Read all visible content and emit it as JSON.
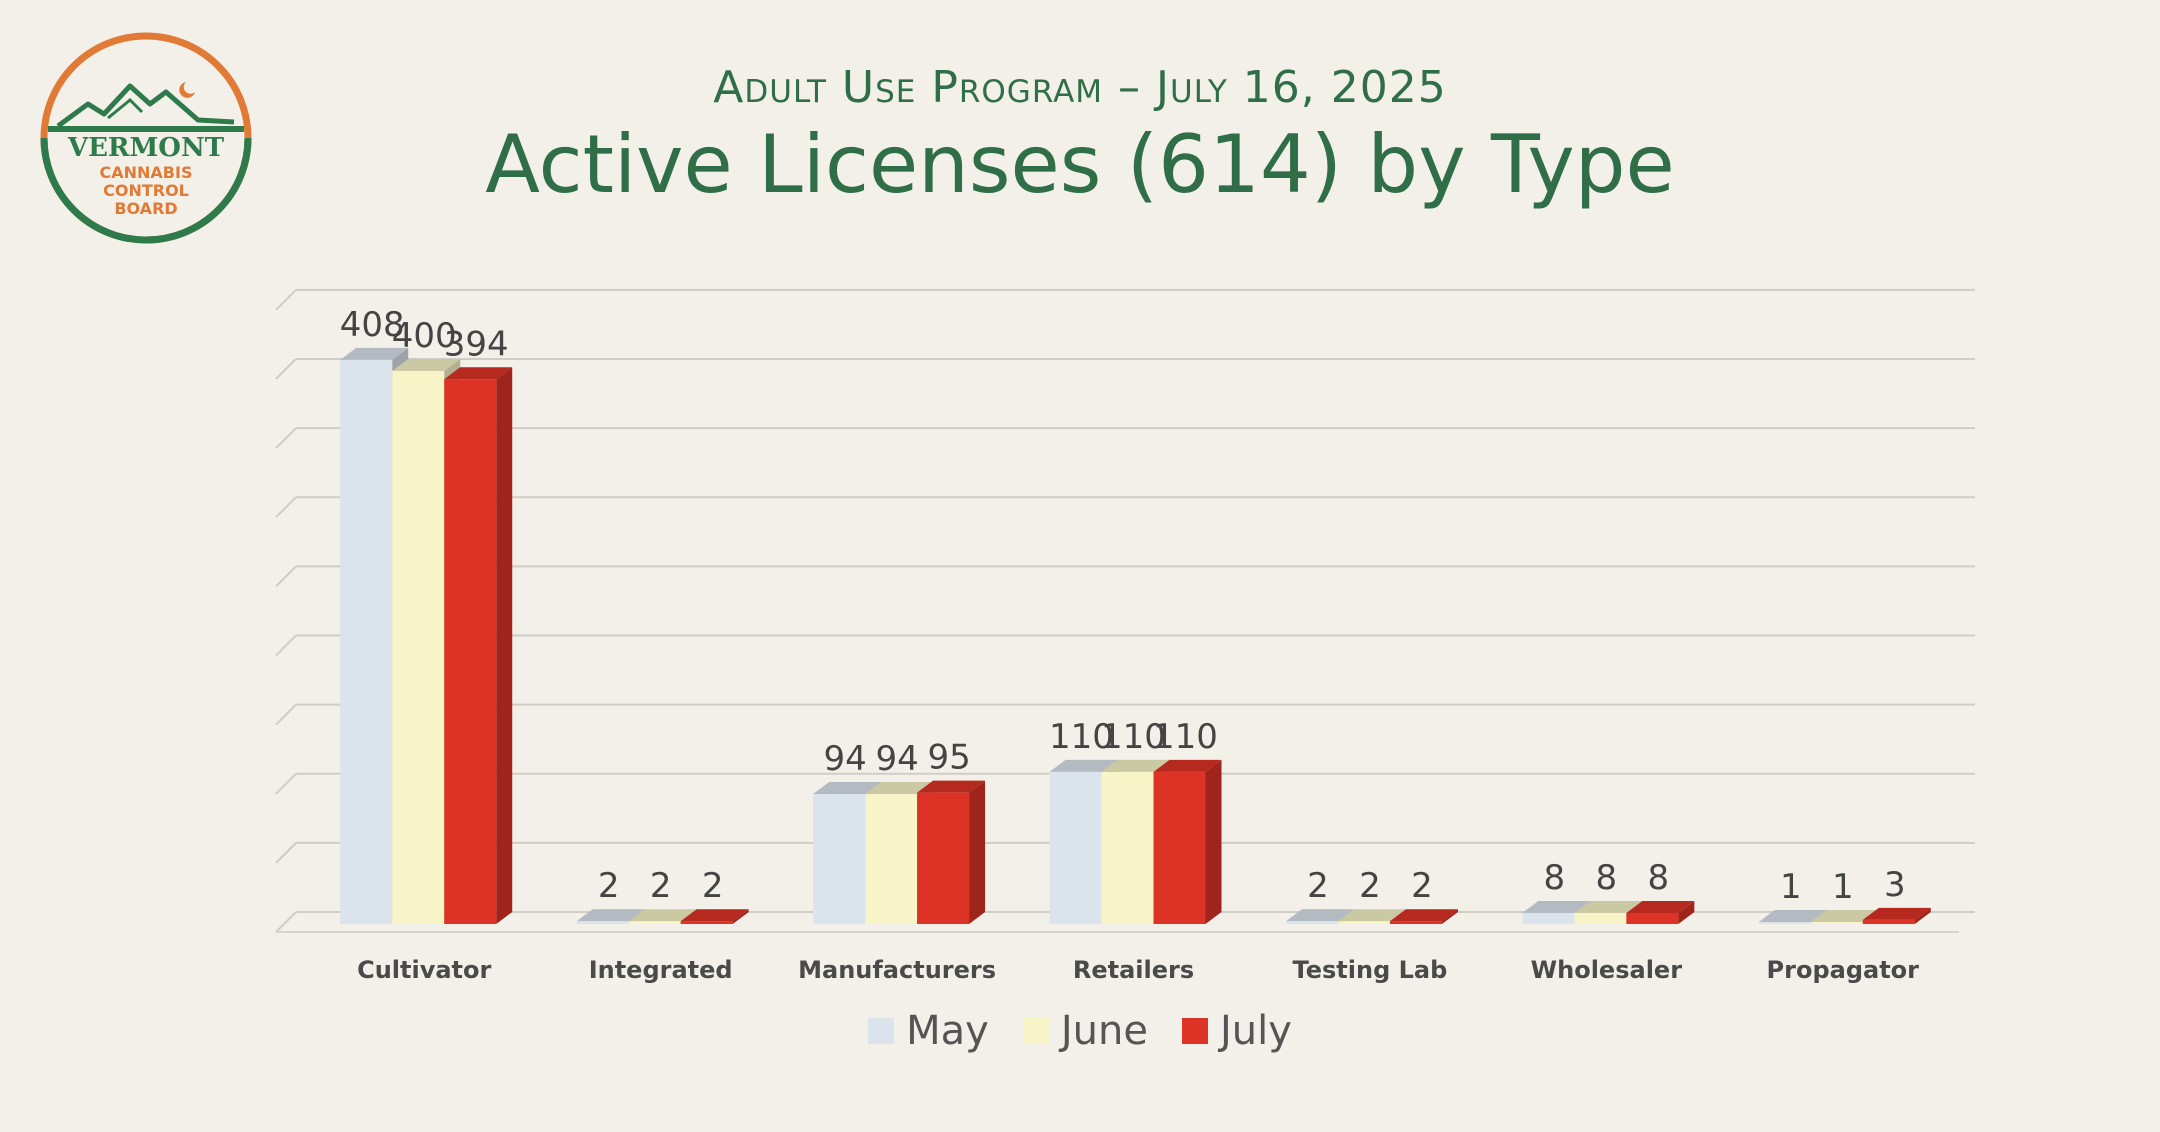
{
  "header": {
    "subtitle": "Adult Use Program – July 16, 2025",
    "title": "Active Licenses (614) by Type"
  },
  "logo": {
    "line1": "VERMONT",
    "line2": "CANNABIS",
    "line3": "CONTROL",
    "line4": "BOARD",
    "green": "#2f7a4b",
    "orange": "#e07a35"
  },
  "chart_data": {
    "type": "bar",
    "title": "Active Licenses (614) by Type",
    "xlabel": "",
    "ylabel": "",
    "ylim": [
      0,
      460
    ],
    "gridlines": true,
    "legend_position": "bottom",
    "categories": [
      "Cultivator",
      "Integrated",
      "Manufacturers",
      "Retailers",
      "Testing Lab",
      "Wholesaler",
      "Propagator"
    ],
    "series": [
      {
        "name": "May",
        "color": "#dbe3ec",
        "values": [
          408,
          2,
          94,
          110,
          2,
          8,
          1
        ]
      },
      {
        "name": "June",
        "color": "#f7f4c8",
        "values": [
          400,
          2,
          94,
          110,
          2,
          8,
          1
        ]
      },
      {
        "name": "July",
        "color": "#dd3226",
        "values": [
          394,
          2,
          95,
          110,
          2,
          8,
          3
        ]
      }
    ]
  }
}
